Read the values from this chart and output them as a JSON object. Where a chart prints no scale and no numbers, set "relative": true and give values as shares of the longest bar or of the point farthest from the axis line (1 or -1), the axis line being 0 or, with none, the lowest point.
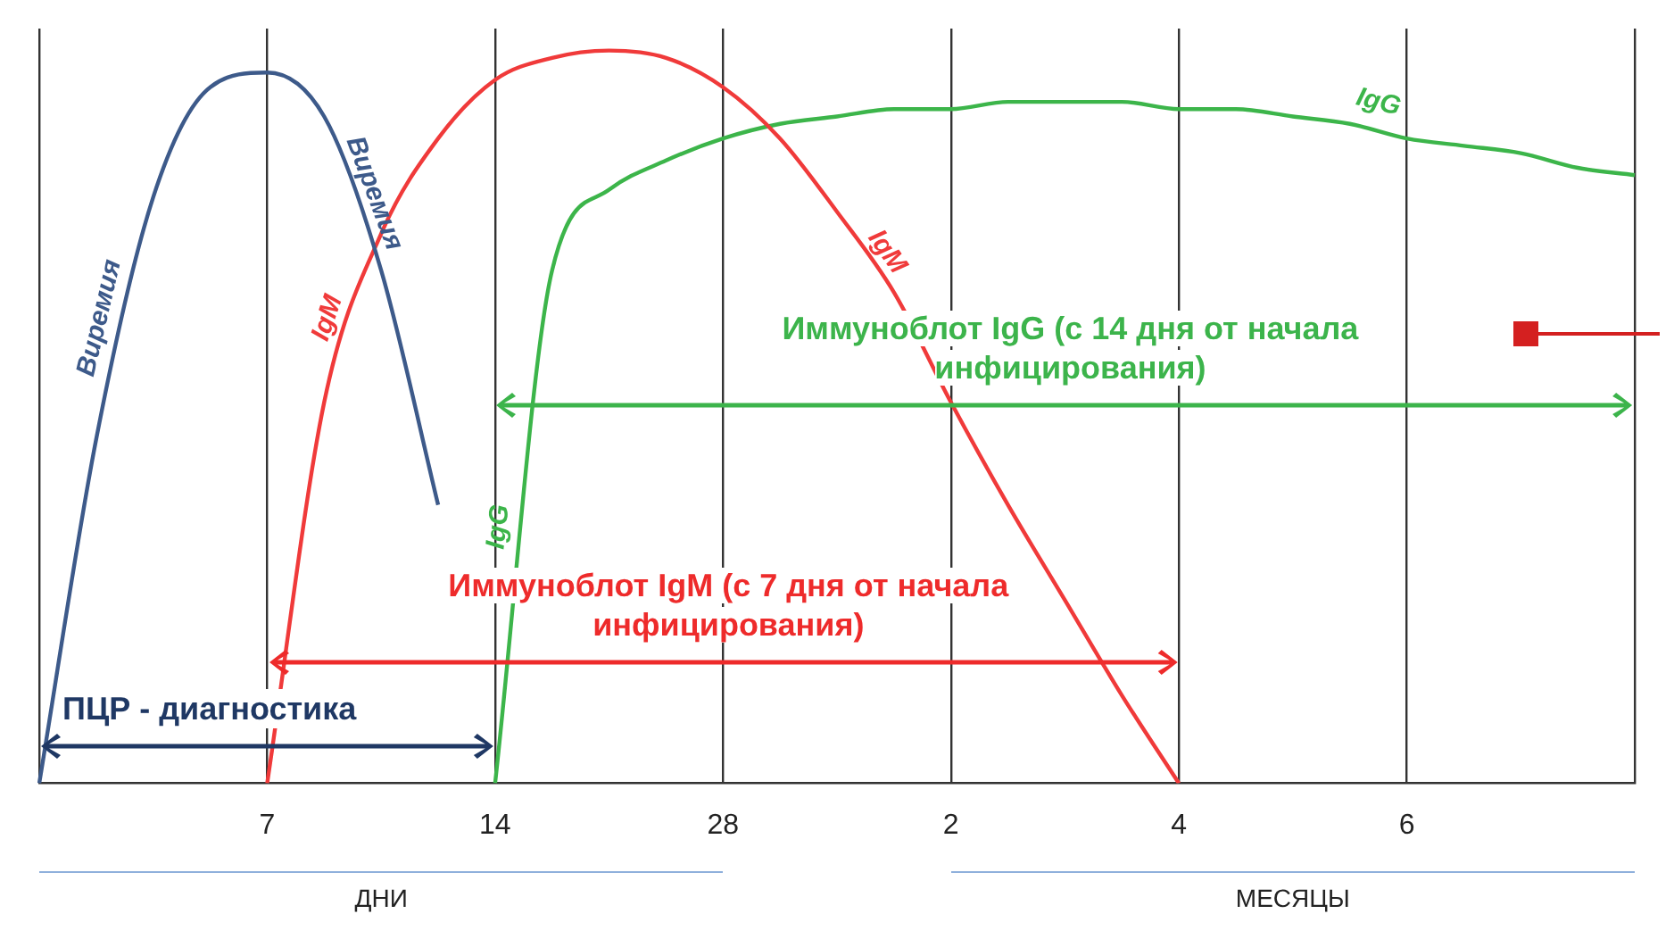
{
  "chart_data": {
    "type": "line",
    "relative": true,
    "categories": [
      null,
      null,
      null,
      null,
      "7",
      null,
      null,
      null,
      "14",
      null,
      null,
      null,
      "28",
      null,
      null,
      null,
      "2",
      null,
      null,
      null,
      "4",
      null,
      null,
      null,
      "6",
      null,
      null,
      null,
      null
    ],
    "series": [
      {
        "name": "Виремия",
        "color": "#3d5a8a",
        "values": [
          0,
          0.47,
          0.8,
          0.95,
          0.97,
          0.91,
          0.7,
          0.38,
          null,
          null,
          null,
          null,
          null,
          null,
          null,
          null,
          null,
          null,
          null,
          null,
          null,
          null,
          null,
          null,
          null,
          null,
          null,
          null,
          null
        ]
      },
      {
        "name": "IgM",
        "color": "#f03a3a",
        "values": [
          null,
          null,
          null,
          null,
          0,
          0.52,
          0.75,
          0.88,
          0.96,
          0.99,
          1,
          0.99,
          0.95,
          0.88,
          0.78,
          0.67,
          0.52,
          0.38,
          0.25,
          0.12,
          0,
          null,
          null,
          null,
          null,
          null,
          null,
          null,
          null
        ]
      },
      {
        "name": "IgG",
        "color": "#3cb54a",
        "values": [
          null,
          null,
          null,
          null,
          null,
          null,
          null,
          null,
          0,
          0.7,
          0.81,
          0.85,
          0.88,
          0.9,
          0.91,
          0.92,
          0.92,
          0.93,
          0.93,
          0.93,
          0.92,
          0.92,
          0.91,
          0.9,
          0.88,
          0.87,
          0.86,
          0.84,
          0.83
        ]
      }
    ],
    "annotations": [
      "ПЦР - диагностика",
      "Иммуноблот IgM (с 7 дня от начала инфицирования)",
      "Иммуноблот IgG (с 14 дня от начала инфицирования)",
      "ДНИ",
      "МЕСЯЦЫ"
    ],
    "grid": "x",
    "legend": false,
    "marker": "none",
    "line_style": "solid"
  }
}
